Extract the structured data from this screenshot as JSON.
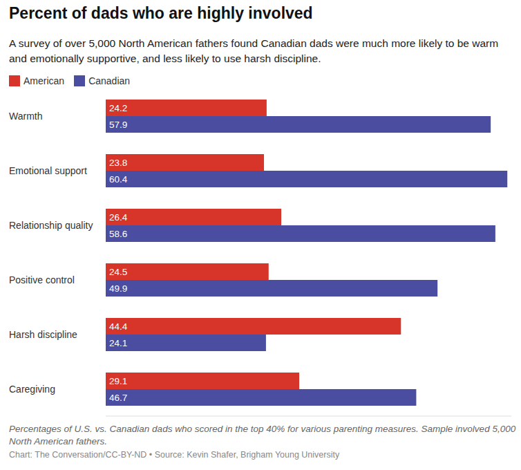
{
  "chart_data": {
    "type": "bar",
    "orientation": "horizontal",
    "title": "Percent of dads who are highly involved",
    "subtitle": "A survey of over 5,000 North American fathers found Canadian dads were much more likely to be warm and emotionally supportive, and less likely to use harsh discipline.",
    "caption": "Percentages of U.S. vs. Canadian dads who scored in the top 40% for various parenting measures. Sample involved 5,000 North American fathers.",
    "source": "Chart: The Conversation/CC-BY-ND • Source: Kevin Shafer, Brigham Young University",
    "categories": [
      "Warmth",
      "Emotional support",
      "Relationship quality",
      "Positive control",
      "Harsh discipline",
      "Caregiving"
    ],
    "series": [
      {
        "name": "American",
        "color": "#d8352a",
        "values": [
          24.2,
          23.8,
          26.4,
          24.5,
          44.4,
          29.1
        ]
      },
      {
        "name": "Canadian",
        "color": "#4b4ea0",
        "values": [
          57.9,
          60.4,
          58.6,
          49.9,
          24.1,
          46.7
        ]
      }
    ],
    "xlim": [
      0,
      61
    ],
    "tick_labels": "y",
    "data_labels": true,
    "grid": false,
    "legend": "top-left"
  }
}
